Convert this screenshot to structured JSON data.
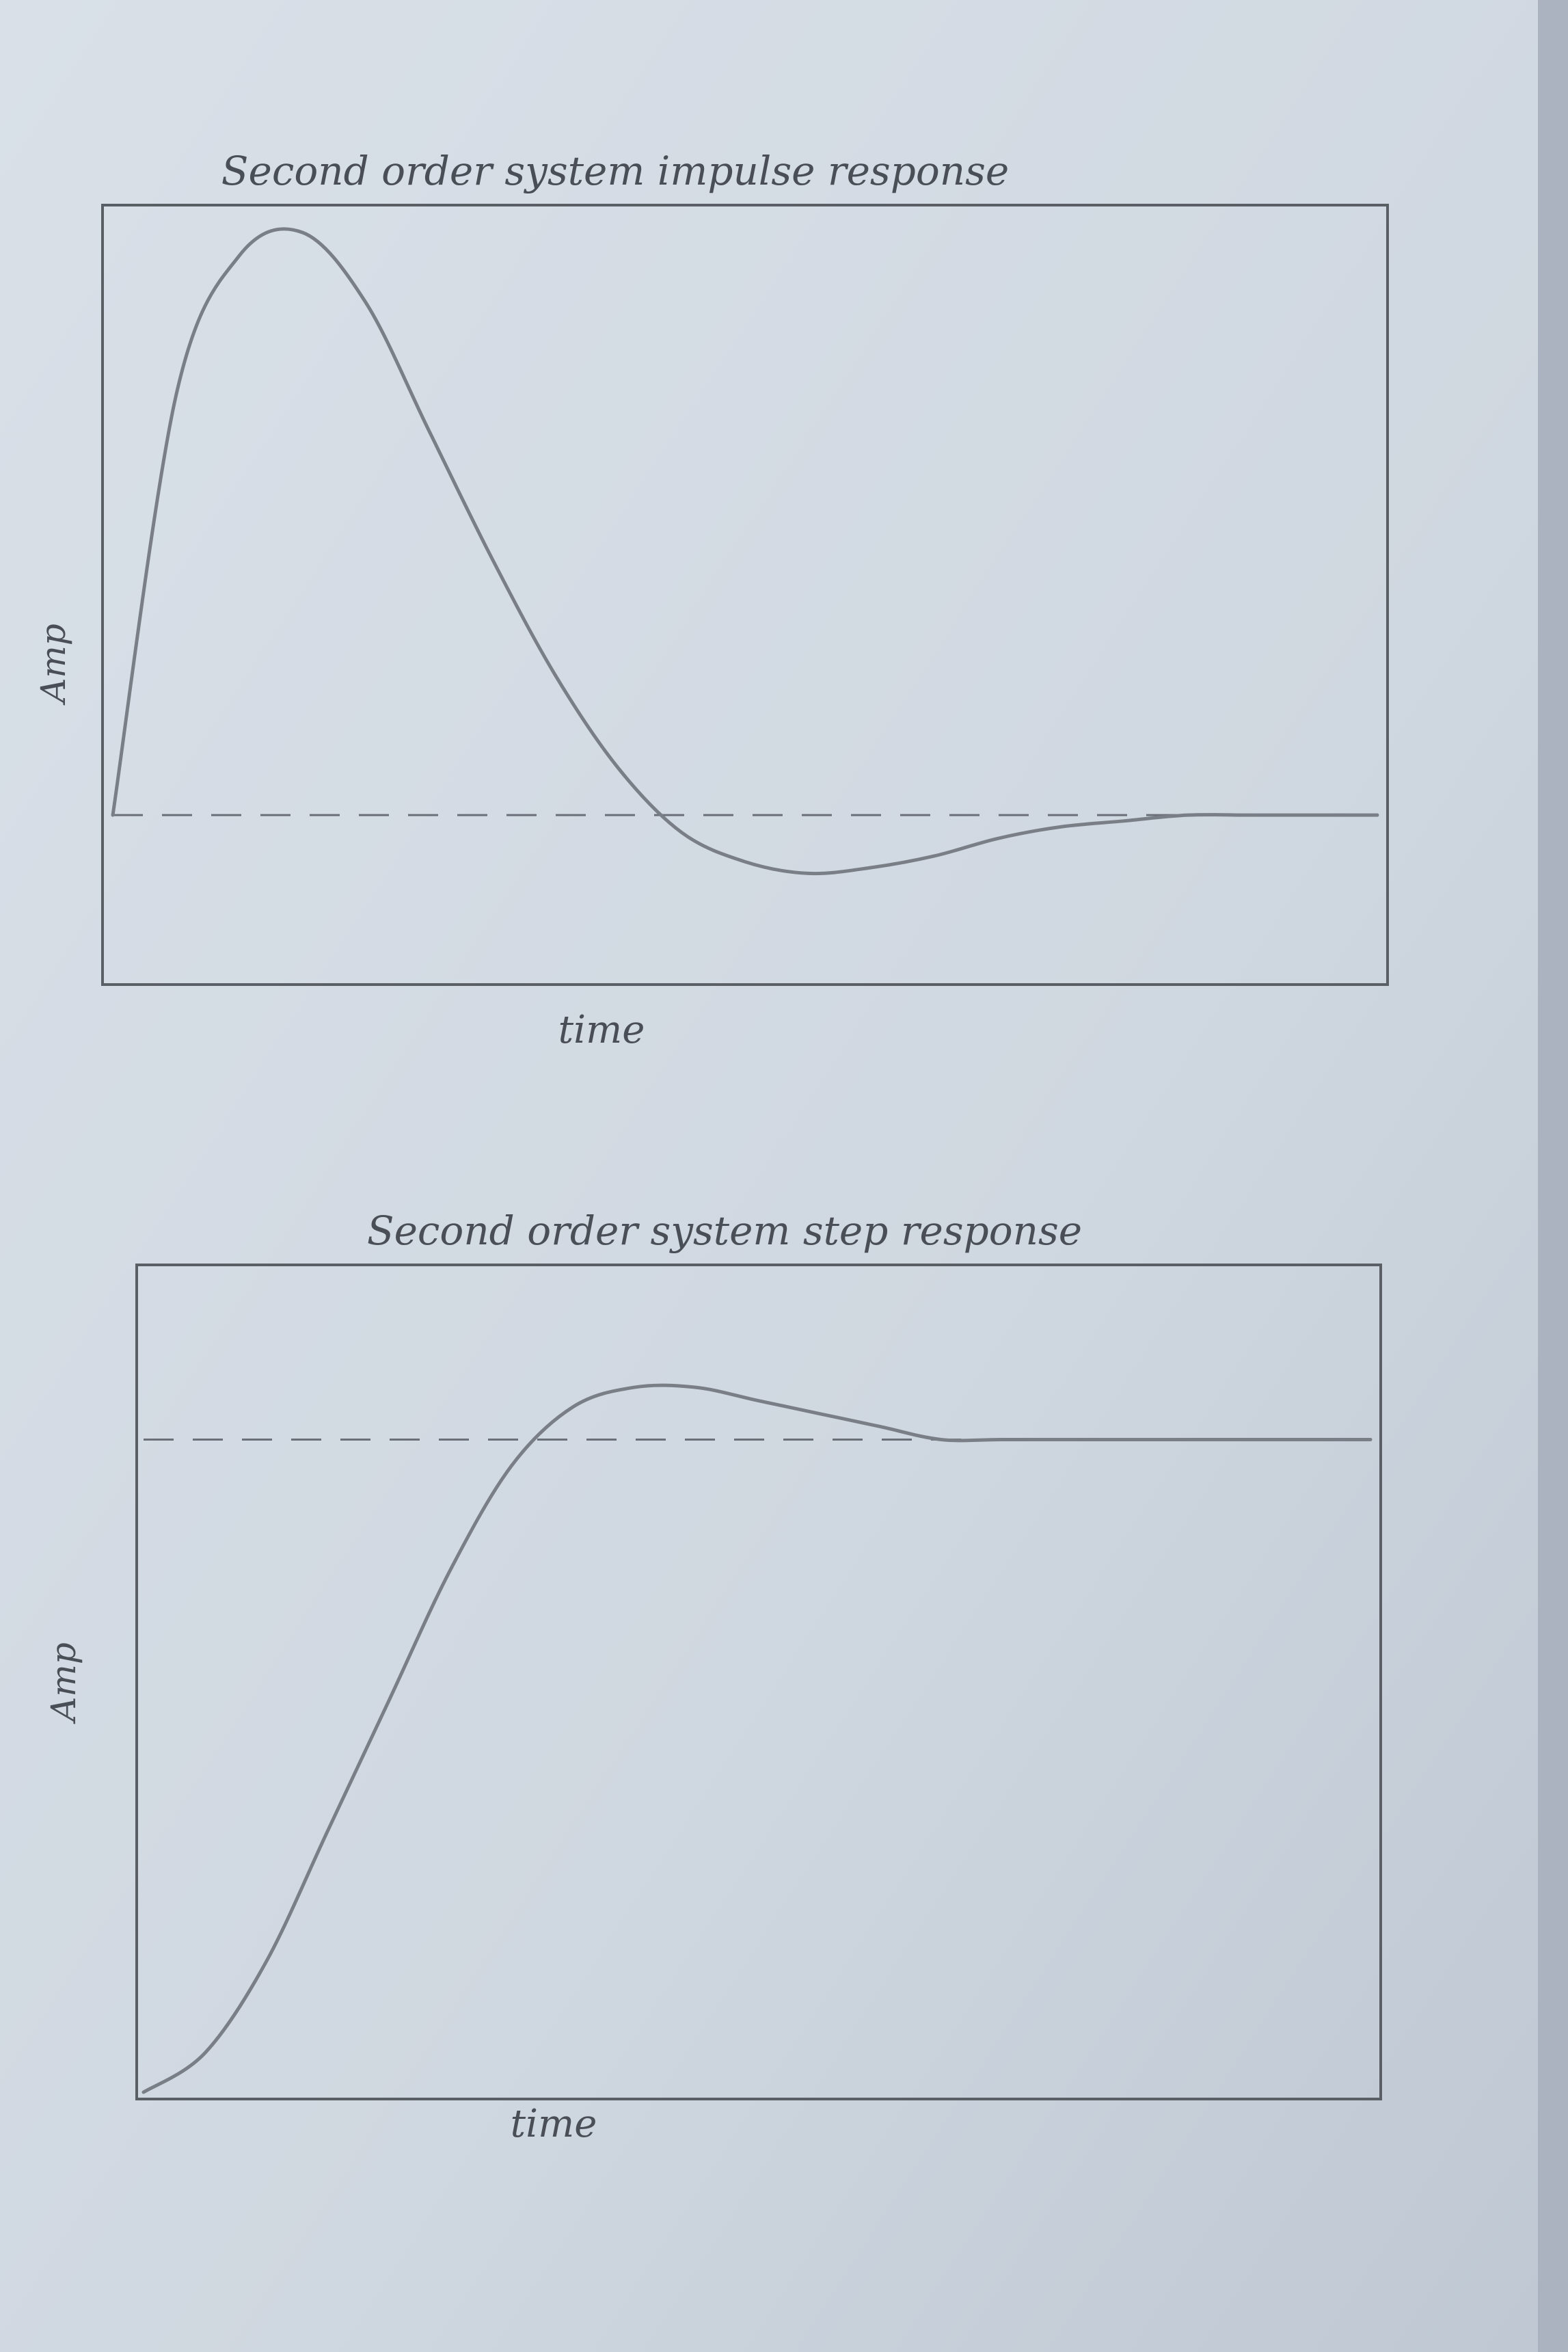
{
  "chart_data": [
    {
      "type": "line",
      "title": "Second order system impulse response",
      "xlabel": "time",
      "ylabel": "Amp",
      "x": [
        0,
        0.5,
        1,
        1.5,
        2,
        2.5,
        3,
        3.5,
        4,
        4.5,
        5,
        5.5,
        6,
        6.5,
        7,
        7.5,
        8,
        8.5,
        9,
        9.5,
        10
      ],
      "series": [
        {
          "values": [
            0,
            0.72,
            0.96,
            1.0,
            0.88,
            0.66,
            0.44,
            0.24,
            0.08,
            -0.03,
            -0.08,
            -0.1,
            -0.09,
            -0.07,
            -0.04,
            -0.02,
            -0.01,
            0.0,
            0.0,
            0.0,
            0.0
          ]
        }
      ],
      "reference_line": 0,
      "grid": false,
      "colors": {
        "line": "#7a7f87",
        "axes": "#5a5f66",
        "reference": "#6b7078"
      }
    },
    {
      "type": "line",
      "title": "Second order system step response",
      "xlabel": "time",
      "ylabel": "Amp",
      "x": [
        0,
        0.5,
        1,
        1.5,
        2,
        2.5,
        3,
        3.5,
        4,
        4.5,
        5,
        5.5,
        6,
        6.5,
        7,
        7.5,
        8,
        8.5,
        9,
        9.5,
        10
      ],
      "series": [
        {
          "values": [
            0,
            0.06,
            0.2,
            0.4,
            0.6,
            0.8,
            0.96,
            1.05,
            1.08,
            1.08,
            1.06,
            1.04,
            1.02,
            1.0,
            1.0,
            1.0,
            1.0,
            1.0,
            1.0,
            1.0,
            1.0
          ]
        }
      ],
      "reference_line": 1,
      "grid": false,
      "colors": {
        "line": "#7a7f87",
        "axes": "#5a5f66",
        "reference": "#6b7078"
      }
    }
  ]
}
